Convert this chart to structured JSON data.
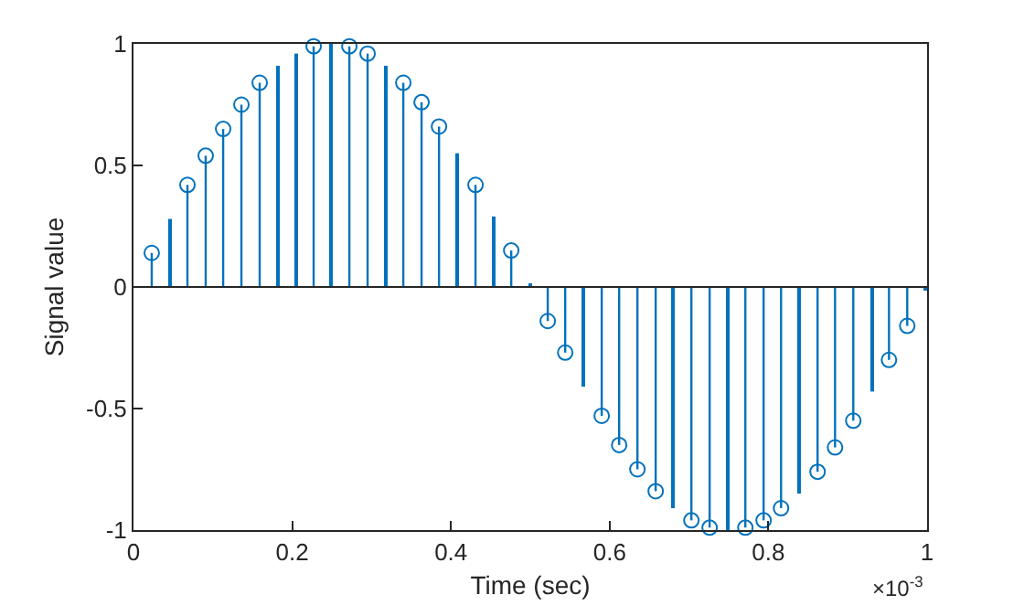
{
  "chart_data": {
    "type": "lollipop",
    "xlabel": "Time (sec)",
    "ylabel": "Signal value",
    "annotations": [
      "×10$^{-3}$"
    ],
    "xlim": [
      0,
      1
    ],
    "xticks": [
      0,
      0.2,
      0.4,
      0.6,
      0.8,
      1
    ],
    "ylim": [
      -1,
      1
    ],
    "yticks": [
      -1,
      -0.5,
      0,
      0.5,
      1
    ],
    "ref_lines": [
      {
        "axis": "y",
        "value": 0,
        "color": "#262626"
      }
    ],
    "series": [
      {
        "type": "bar",
        "color": "#0072bd",
        "x": [
          0.045,
          0.181,
          0.204,
          0.249,
          0.317,
          0.408,
          0.454,
          0.499,
          0.567,
          0.68,
          0.748,
          0.839,
          0.93,
          0.998
        ],
        "values": [
          0.28,
          0.91,
          0.96,
          1.0,
          0.91,
          0.55,
          0.29,
          0.01,
          -0.41,
          -0.91,
          -1.0,
          -0.85,
          -0.43,
          -0.01
        ]
      },
      {
        "color": "#0072bd",
        "marker": "circle",
        "x": [
          0.023,
          0.068,
          0.091,
          0.113,
          0.136,
          0.159,
          0.227,
          0.272,
          0.295,
          0.34,
          0.363,
          0.385,
          0.431,
          0.476,
          0.522,
          0.544,
          0.59,
          0.612,
          0.635,
          0.658,
          0.703,
          0.726,
          0.771,
          0.794,
          0.816,
          0.862,
          0.884,
          0.907,
          0.952,
          0.975
        ],
        "values": [
          0.14,
          0.42,
          0.54,
          0.65,
          0.75,
          0.84,
          0.99,
          0.99,
          0.96,
          0.84,
          0.76,
          0.66,
          0.42,
          0.15,
          -0.14,
          -0.27,
          -0.53,
          -0.65,
          -0.75,
          -0.84,
          -0.96,
          -0.99,
          -0.99,
          -0.96,
          -0.91,
          -0.76,
          -0.66,
          -0.55,
          -0.3,
          -0.16
        ]
      }
    ]
  }
}
